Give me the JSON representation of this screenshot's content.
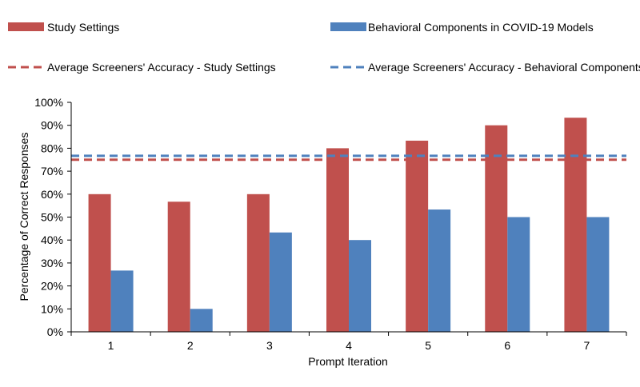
{
  "chart_data": {
    "type": "bar",
    "title": "",
    "xlabel": "Prompt Iteration",
    "ylabel": "Percentage of Correct Responses",
    "categories": [
      "1",
      "2",
      "3",
      "4",
      "5",
      "6",
      "7"
    ],
    "series": [
      {
        "name": "Study Settings",
        "color": "#c0504d",
        "values": [
          60,
          56.7,
          60,
          80,
          83.3,
          90,
          93.3
        ]
      },
      {
        "name": "Behavioral Components in COVID-19 Models",
        "color": "#4f81bd",
        "values": [
          26.7,
          10,
          43.3,
          40,
          53.3,
          50,
          50
        ]
      }
    ],
    "reference_lines": [
      {
        "name": "Average Screeners' Accuracy - Study Settings",
        "color": "#c0504d",
        "value": 75
      },
      {
        "name": "Average Screeners' Accuracy - Behavioral Components",
        "color": "#4f81bd",
        "value": 76.7
      }
    ],
    "ylim": [
      0,
      100
    ],
    "yticks": [
      0,
      10,
      20,
      30,
      40,
      50,
      60,
      70,
      80,
      90,
      100
    ],
    "ytick_suffix": "%",
    "legend_position": "top",
    "grid": false
  }
}
